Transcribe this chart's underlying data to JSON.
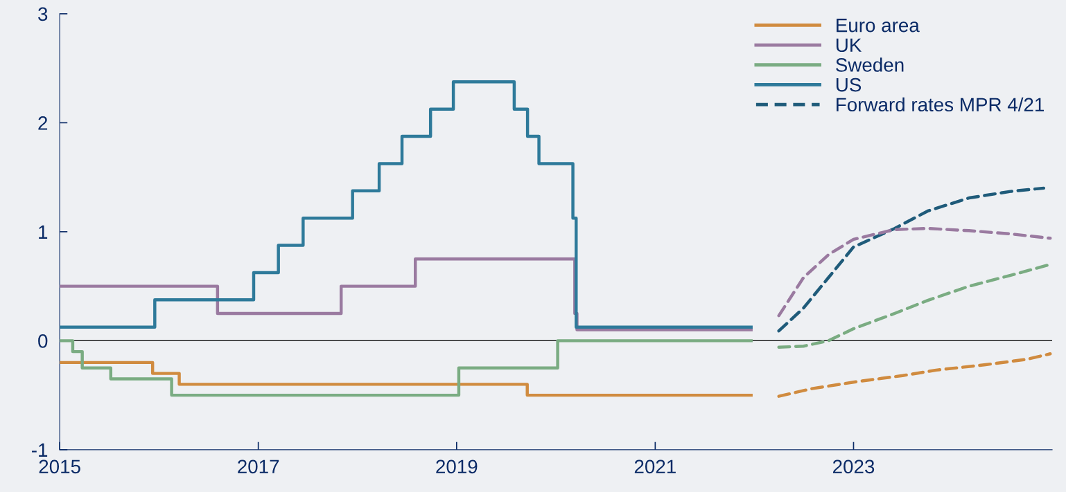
{
  "chart_data": {
    "type": "step",
    "xlim": [
      "2015-01-01",
      "2025-01-01"
    ],
    "xticks": [
      {
        "value": "2015-01-01",
        "label": "2015"
      },
      {
        "value": "2017-01-01",
        "label": "2017"
      },
      {
        "value": "2019-01-01",
        "label": "2019"
      },
      {
        "value": "2021-01-01",
        "label": "2021"
      },
      {
        "value": "2023-01-01",
        "label": "2023"
      }
    ],
    "ylim": [
      -1,
      3
    ],
    "yticks": [
      -1,
      0,
      1,
      2,
      3
    ],
    "grid": false,
    "legend": "top right",
    "line_style": "solid",
    "marker": "none",
    "ref_lines": [
      {
        "axis": "y",
        "value": 0,
        "color": "#000000"
      }
    ],
    "series": [
      {
        "name": "Euro area",
        "color": "#d08b3f",
        "x": [
          "2015-01-01",
          "2015-12-09",
          "2016-03-16",
          "2019-09-18",
          "2021-12-20"
        ],
        "values": [
          -0.2,
          -0.3,
          -0.4,
          -0.5,
          -0.5
        ]
      },
      {
        "name": "UK",
        "color": "#9a7aa0",
        "x": [
          "2015-01-01",
          "2016-08-04",
          "2017-11-02",
          "2018-08-02",
          "2020-03-11",
          "2020-03-19",
          "2021-12-20"
        ],
        "values": [
          0.5,
          0.25,
          0.5,
          0.75,
          0.25,
          0.1,
          0.1
        ]
      },
      {
        "name": "Sweden",
        "color": "#7aac82",
        "x": [
          "2015-01-01",
          "2015-02-18",
          "2015-03-25",
          "2015-07-08",
          "2016-02-17",
          "2019-01-09",
          "2020-01-08",
          "2021-12-20"
        ],
        "values": [
          0,
          -0.1,
          -0.25,
          -0.35,
          -0.5,
          -0.25,
          0,
          0
        ]
      },
      {
        "name": "US",
        "color": "#2e7a9a",
        "x": [
          "2015-01-01",
          "2015-12-17",
          "2016-12-15",
          "2017-03-16",
          "2017-06-15",
          "2017-12-14",
          "2018-03-22",
          "2018-06-14",
          "2018-09-27",
          "2018-12-20",
          "2019-08-01",
          "2019-09-19",
          "2019-10-31",
          "2020-03-04",
          "2020-03-16",
          "2021-12-20"
        ],
        "values": [
          0.125,
          0.375,
          0.625,
          0.875,
          1.125,
          1.375,
          1.625,
          1.875,
          2.125,
          2.375,
          2.125,
          1.875,
          1.625,
          1.125,
          0.125,
          0.125
        ]
      },
      {
        "name": "Forward rates MPR 4/21",
        "color": "#1f5b7a",
        "type": "line",
        "line_style": "dashed",
        "x": [
          "2022-04-01",
          "2022-07-01",
          "2022-10-01",
          "2023-01-01",
          "2023-06-01",
          "2023-10-01",
          "2024-03-01",
          "2024-08-01",
          "2024-12-01"
        ],
        "values": [
          0.09,
          0.3,
          0.58,
          0.86,
          1.03,
          1.19,
          1.31,
          1.37,
          1.4
        ]
      },
      {
        "color": "#9a7aa0",
        "type": "line",
        "line_style": "dashed",
        "x": [
          "2022-04-01",
          "2022-07-01",
          "2022-10-01",
          "2023-01-01",
          "2023-06-01",
          "2023-10-01",
          "2024-03-01",
          "2024-08-01",
          "2024-12-25"
        ],
        "values": [
          0.23,
          0.58,
          0.79,
          0.93,
          1.02,
          1.03,
          1.01,
          0.98,
          0.94
        ]
      },
      {
        "color": "#7aac82",
        "type": "line",
        "line_style": "dashed",
        "x": [
          "2022-04-01",
          "2022-07-01",
          "2022-10-01",
          "2023-01-01",
          "2023-06-01",
          "2023-10-01",
          "2024-03-01",
          "2024-08-01",
          "2024-12-25"
        ],
        "values": [
          -0.06,
          -0.05,
          0,
          0.11,
          0.25,
          0.37,
          0.5,
          0.6,
          0.7
        ]
      },
      {
        "color": "#d08b3f",
        "type": "line",
        "line_style": "dashed",
        "x": [
          "2022-04-01",
          "2022-08-01",
          "2023-01-01",
          "2023-07-01",
          "2023-11-01",
          "2024-05-01",
          "2024-10-01",
          "2024-12-25"
        ],
        "values": [
          -0.51,
          -0.44,
          -0.38,
          -0.32,
          -0.27,
          -0.22,
          -0.17,
          -0.12
        ]
      }
    ]
  }
}
